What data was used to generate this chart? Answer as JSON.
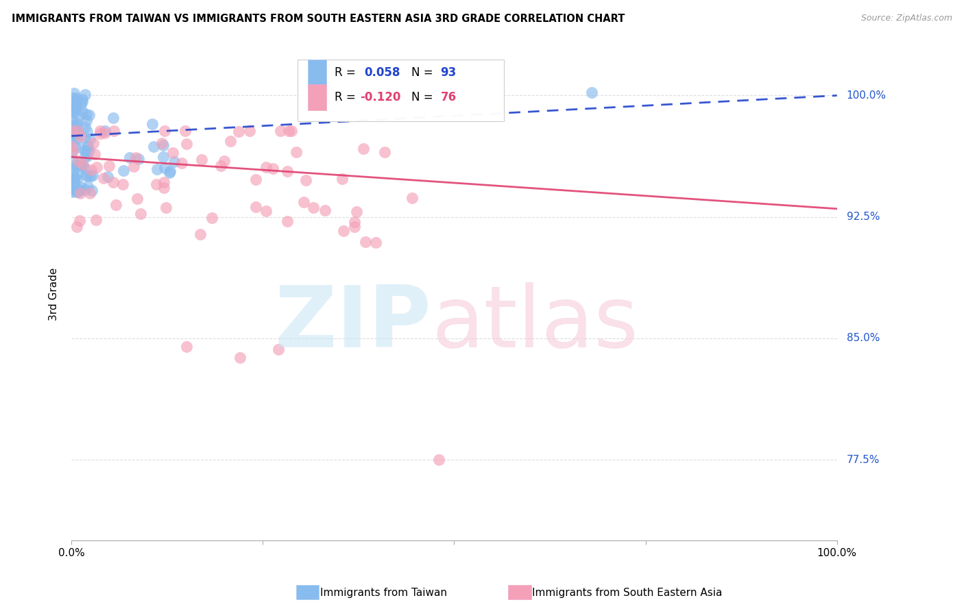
{
  "title": "IMMIGRANTS FROM TAIWAN VS IMMIGRANTS FROM SOUTH EASTERN ASIA 3RD GRADE CORRELATION CHART",
  "source": "Source: ZipAtlas.com",
  "ylabel": "3rd Grade",
  "ytick_labels": [
    "100.0%",
    "92.5%",
    "85.0%",
    "77.5%"
  ],
  "ytick_values": [
    1.0,
    0.925,
    0.85,
    0.775
  ],
  "xlim": [
    0.0,
    1.0
  ],
  "ylim": [
    0.725,
    1.03
  ],
  "R_taiwan": 0.058,
  "N_taiwan": 93,
  "R_sea": -0.12,
  "N_sea": 76,
  "taiwan_color": "#88BBEE",
  "sea_color": "#F4A0B8",
  "trend_taiwan_color": "#2244CC",
  "trend_sea_color": "#E04070",
  "grid_color": "#DDDDDD",
  "background_color": "#FFFFFF",
  "legend_R_taiwan_color": "#2244CC",
  "legend_R_sea_color": "#E04070",
  "legend_N_taiwan_color": "#2244CC",
  "legend_N_sea_color": "#E04070"
}
